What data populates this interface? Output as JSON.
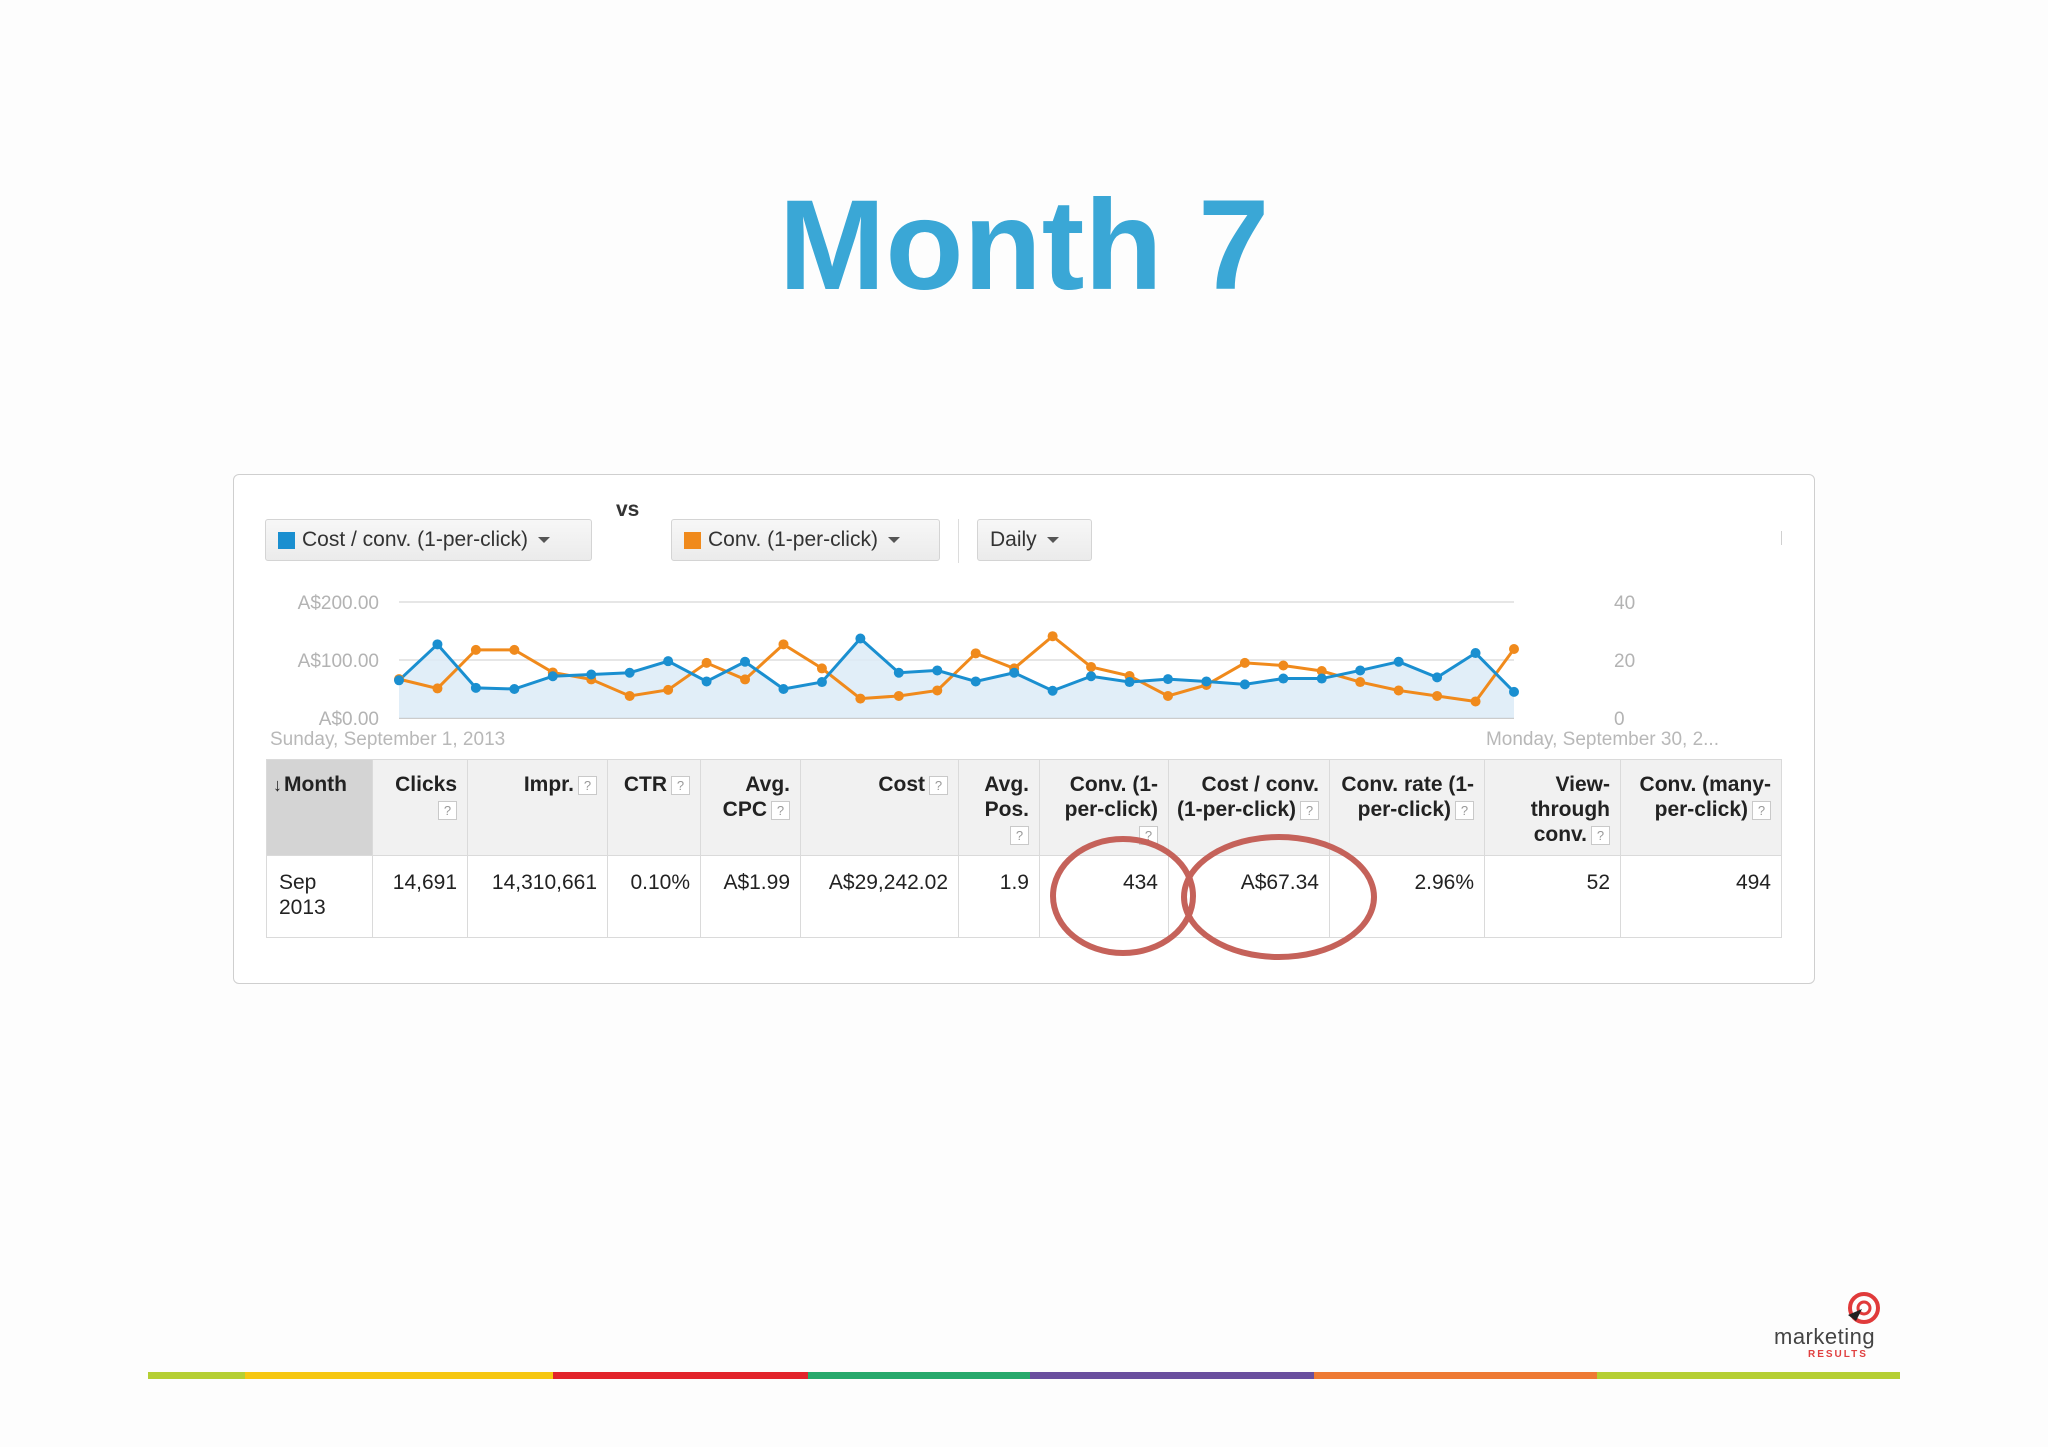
{
  "slide": {
    "title": "Month 7"
  },
  "toolbar": {
    "metric1_label": "Cost / conv. (1-per-click)",
    "metric1_color": "#1a8fd0",
    "vs_label": "vs",
    "metric2_label": "Conv. (1-per-click)",
    "metric2_color": "#f08a1c",
    "period_label": "Daily"
  },
  "chart_data": {
    "type": "line",
    "left_axis": {
      "ticks": [
        "A$200.00",
        "A$100.00",
        "A$0.00"
      ],
      "ylim": [
        0,
        200
      ]
    },
    "right_axis": {
      "ticks": [
        "40",
        "20",
        "0"
      ],
      "ylim": [
        0,
        40
      ]
    },
    "start_label": "Sunday, September 1, 2013",
    "end_label": "Monday, September 30, 2...",
    "x": [
      1,
      2,
      3,
      4,
      5,
      6,
      7,
      8,
      9,
      10,
      11,
      12,
      13,
      14,
      15,
      16,
      17,
      18,
      19,
      20,
      21,
      22,
      23,
      24,
      25,
      26,
      27,
      28,
      29,
      30
    ],
    "series": [
      {
        "name": "Cost / conv. (1-per-click)",
        "axis": "left",
        "color": "#1a8fd0",
        "values": [
          65,
          127,
          52,
          50,
          72,
          75,
          78,
          98,
          63,
          97,
          50,
          62,
          137,
          78,
          82,
          63,
          78,
          47,
          72,
          62,
          67,
          63,
          58,
          68,
          68,
          82,
          97,
          70,
          112,
          45
        ]
      },
      {
        "name": "Conv. (1-per-click)",
        "axis": "right",
        "color": "#f08a1c",
        "values": [
          13.4,
          10.2,
          23.5,
          23.5,
          15.7,
          13.3,
          7.6,
          9.7,
          19.0,
          13.3,
          25.4,
          17.1,
          6.7,
          7.6,
          9.5,
          22.3,
          17.1,
          28.2,
          17.6,
          14.5,
          7.6,
          11.4,
          19.0,
          18.1,
          16.2,
          12.4,
          9.5,
          7.6,
          5.7,
          23.8
        ]
      }
    ]
  },
  "table": {
    "headers": [
      {
        "label": "Month",
        "sorted": true,
        "help": false
      },
      {
        "label": "Clicks",
        "help": true
      },
      {
        "label": "Impr.",
        "help": true
      },
      {
        "label": "CTR",
        "help": true
      },
      {
        "label": "Avg. CPC",
        "help": true
      },
      {
        "label": "Cost",
        "help": true
      },
      {
        "label": "Avg. Pos.",
        "help": true
      },
      {
        "label": "Conv. (1-per-click)",
        "help": true
      },
      {
        "label": "Cost / conv. (1-per-click)",
        "help": true
      },
      {
        "label": "Conv. rate (1-per-click)",
        "help": true
      },
      {
        "label": "View-through conv.",
        "help": true
      },
      {
        "label": "Conv. (many-per-click)",
        "help": true
      }
    ],
    "help_glyph": "?",
    "sort_glyph": "↓",
    "row": [
      "Sep 2013",
      "14,691",
      "14,310,661",
      "0.10%",
      "A$1.99",
      "A$29,242.02",
      "1.9",
      "434",
      "A$67.34",
      "2.96%",
      "52",
      "494"
    ]
  },
  "annotations": {
    "circle_color": "#c5625a",
    "circled_columns": [
      "Conv. (1-per-click)",
      "Cost / conv. (1-per-click)"
    ]
  },
  "footer": {
    "logo_text": "marketing",
    "logo_subtext": "RESULTS",
    "stripe_colors": [
      "#b5cf33",
      "#f6c711",
      "#e2232b",
      "#27a96c",
      "#6a4f9e",
      "#ee7a34",
      "#b5cf33"
    ]
  }
}
